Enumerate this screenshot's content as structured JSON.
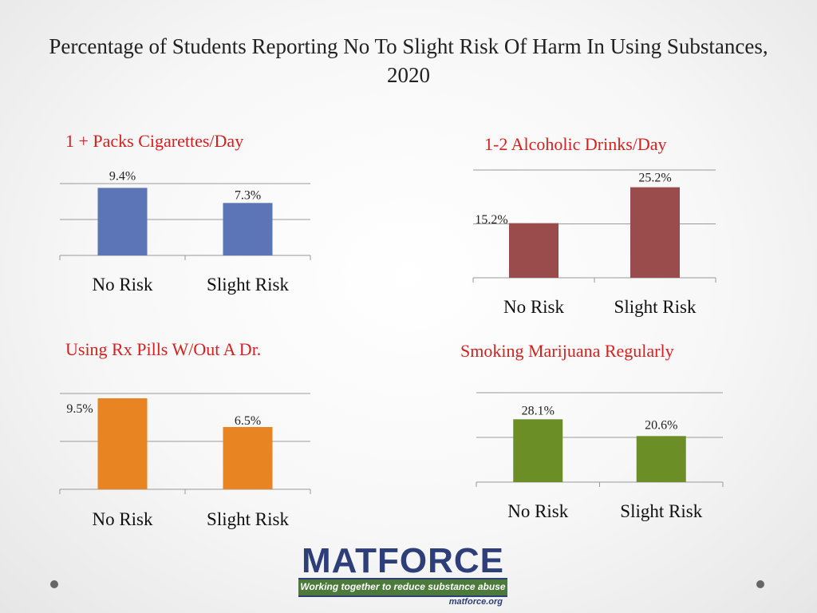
{
  "slide": {
    "title": "Percentage of Students Reporting No To Slight Risk Of Harm In Using Substances, 2020"
  },
  "logo": {
    "name": "MATFORCE",
    "tagline": "Working together to reduce substance abuse",
    "url": "matforce.org"
  },
  "colors": {
    "cigarettes": "#5b75b6",
    "alcohol": "#9a4b4b",
    "rx_pills": "#e88522",
    "marijuana": "#6b8e26",
    "title_red": "#d62020",
    "axis": "#999999"
  },
  "chart_data": [
    {
      "type": "bar",
      "title": "1 + Packs Cigarettes/Day",
      "categories": [
        "No Risk",
        "Slight Risk"
      ],
      "values": [
        9.4,
        7.3
      ],
      "value_labels": [
        "9.4%",
        "7.3%"
      ],
      "ylim": [
        0,
        10
      ],
      "grid": true,
      "color_key": "cigarettes"
    },
    {
      "type": "bar",
      "title": "1-2 Alcoholic Drinks/Day",
      "categories": [
        "No Risk",
        "Slight Risk"
      ],
      "values": [
        15.2,
        25.2
      ],
      "value_labels": [
        "15.2%",
        "25.2%"
      ],
      "ylim": [
        0,
        30
      ],
      "grid": true,
      "color_key": "alcohol"
    },
    {
      "type": "bar",
      "title": "Using Rx Pills W/Out A Dr.",
      "categories": [
        "No Risk",
        "Slight Risk"
      ],
      "values": [
        9.5,
        6.5
      ],
      "value_labels": [
        "9.5%",
        "6.5%"
      ],
      "ylim": [
        0,
        10
      ],
      "grid": true,
      "color_key": "rx_pills"
    },
    {
      "type": "bar",
      "title": "Smoking Marijuana Regularly",
      "categories": [
        "No Risk",
        "Slight Risk"
      ],
      "values": [
        28.1,
        20.6
      ],
      "value_labels": [
        "28.1%",
        "20.6%"
      ],
      "ylim": [
        0,
        40
      ],
      "grid": true,
      "color_key": "marijuana"
    }
  ]
}
